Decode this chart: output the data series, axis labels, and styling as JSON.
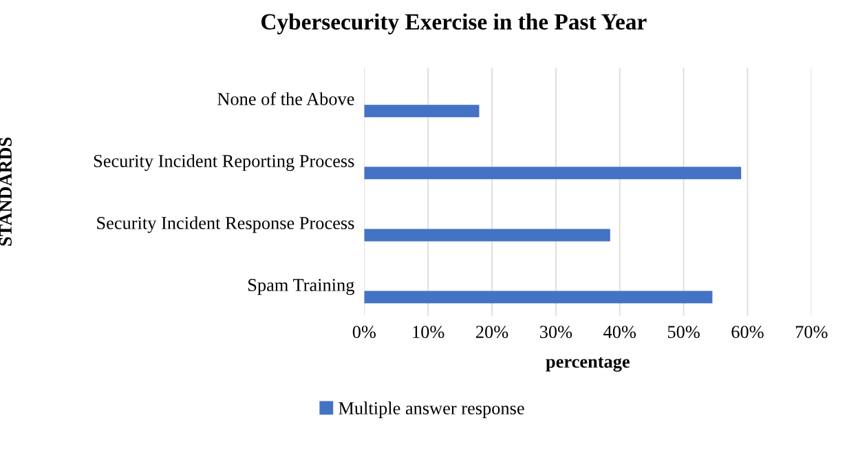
{
  "chart_data": {
    "type": "bar",
    "orientation": "horizontal",
    "title": "Cybersecurity Exercise in the Past Year",
    "xlabel": "percentage",
    "ylabel": "STANDARDS",
    "categories": [
      "None of the Above",
      "Security Incident Reporting Process",
      "Security Incident Response Process",
      "Spam Training"
    ],
    "series": [
      {
        "name": "Multiple answer response",
        "color": "#4472c4",
        "values": [
          18,
          59,
          38.5,
          54.5
        ]
      }
    ],
    "xlim": [
      0,
      70
    ],
    "xticks": [
      {
        "value": 0,
        "label": "0%"
      },
      {
        "value": 10,
        "label": "10%"
      },
      {
        "value": 20,
        "label": "20%"
      },
      {
        "value": 30,
        "label": "30%"
      },
      {
        "value": 40,
        "label": "40%"
      },
      {
        "value": 50,
        "label": "50%"
      },
      {
        "value": 60,
        "label": "60%"
      },
      {
        "value": 70,
        "label": "70%"
      }
    ],
    "grid": "x",
    "legend": "bottom"
  }
}
